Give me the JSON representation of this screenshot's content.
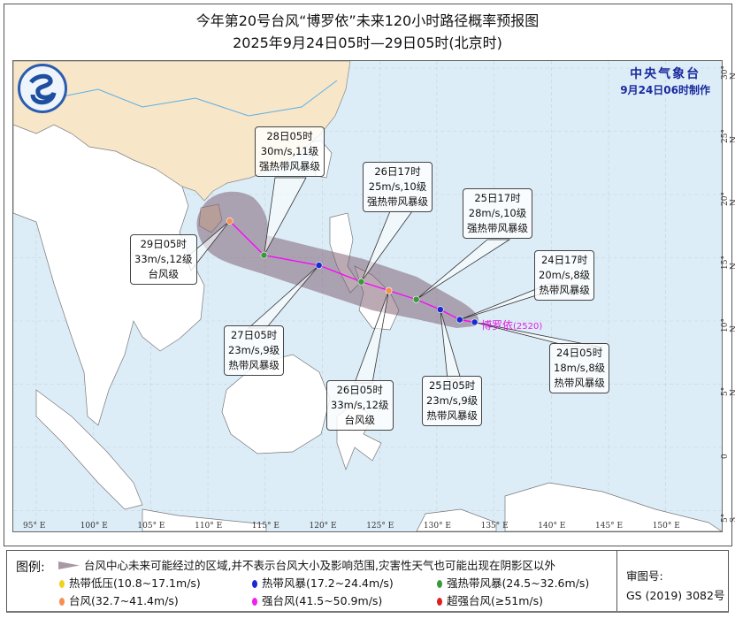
{
  "header": {
    "title": "今年第20号台风“博罗依”未来120小时路径概率预报图",
    "subtitle": "2025年9月24日05时—29日05时(北京时)"
  },
  "agency": {
    "name": "中央气象台",
    "issued": "9月24日06时制作",
    "logo": "cma-logo"
  },
  "colors": {
    "sea": "#dcedf8",
    "china_land": "#f8e6c8",
    "other_land": "#ffffff",
    "cone": "#8a6a80",
    "track": "#ff00ff",
    "tropical_depression": "#f0d020",
    "tropical_storm": "#1a2ad0",
    "severe_tropical_storm": "#3a9a3a",
    "typhoon": "#f59050",
    "severe_typhoon": "#f020f0",
    "super_typhoon": "#e02020"
  },
  "typhoon": {
    "name": "博罗依",
    "code": "(2520)"
  },
  "axes": {
    "lon_labels": [
      "95° E",
      "100° E",
      "105° E",
      "110° E",
      "115° E",
      "120° E",
      "125° E",
      "130° E",
      "135° E",
      "140° E",
      "145° E",
      "150° E"
    ],
    "lat_labels": [
      "30° N",
      "25° N",
      "20° N",
      "15° N",
      "10° N",
      "5° N",
      "0",
      "5° S"
    ],
    "inner_lon_labels": [
      "95",
      "100",
      "105",
      "110",
      "115",
      "120",
      "125",
      "130",
      "135",
      "140",
      "145",
      "150"
    ],
    "inner_lat_labels": [
      "30",
      "20",
      "10"
    ]
  },
  "track": [
    {
      "time": "24日05时",
      "wind": "18m/s,8级",
      "level": "热带风暴级",
      "cat": "tropical_storm",
      "lon": 133.3,
      "lat": 9.9
    },
    {
      "time": "24日17时",
      "wind": "20m/s,8级",
      "level": "热带风暴级",
      "cat": "tropical_storm",
      "lon": 132.0,
      "lat": 10.1
    },
    {
      "time": "25日05时",
      "wind": "23m/s,9级",
      "level": "热带风暴级",
      "cat": "tropical_storm",
      "lon": 130.3,
      "lat": 10.9
    },
    {
      "time": "25日17时",
      "wind": "28m/s,10级",
      "level": "强热带风暴级",
      "cat": "severe_tropical_storm",
      "lon": 128.2,
      "lat": 11.7
    },
    {
      "time": "26日05时",
      "wind": "33m/s,12级",
      "level": "台风级",
      "cat": "typhoon",
      "lon": 125.8,
      "lat": 12.4
    },
    {
      "time": "26日17时",
      "wind": "25m/s,10级",
      "level": "强热带风暴级",
      "cat": "severe_tropical_storm",
      "lon": 123.4,
      "lat": 13.1
    },
    {
      "time": "27日05时",
      "wind": "23m/s,9级",
      "level": "热带风暴级",
      "cat": "tropical_storm",
      "lon": 119.7,
      "lat": 14.4
    },
    {
      "time": "28日05时",
      "wind": "30m/s,11级",
      "level": "强热带风暴级",
      "cat": "severe_tropical_storm",
      "lon": 114.9,
      "lat": 15.2
    },
    {
      "time": "29日05时",
      "wind": "33m/s,12级",
      "level": "台风级",
      "cat": "typhoon",
      "lon": 111.9,
      "lat": 17.9
    }
  ],
  "legend": {
    "title": "图例:",
    "cone_text": "台风中心未来可能经过的区域,并不表示台风大小及影响范围,灾害性天气也可能出现在阴影区以外",
    "items": [
      {
        "label": "热带低压(10.8~17.1m/s)",
        "cat": "tropical_depression"
      },
      {
        "label": "热带风暴(17.2~24.4m/s)",
        "cat": "tropical_storm"
      },
      {
        "label": "强热带风暴(24.5~32.6m/s)",
        "cat": "severe_tropical_storm"
      },
      {
        "label": "台风(32.7~41.4m/s)",
        "cat": "typhoon"
      },
      {
        "label": "强台风(41.5~50.9m/s)",
        "cat": "severe_typhoon"
      },
      {
        "label": "超强台风(≥51m/s)",
        "cat": "super_typhoon"
      }
    ],
    "review_label": "审图号:",
    "review_no": "GS (2019) 3082号"
  }
}
